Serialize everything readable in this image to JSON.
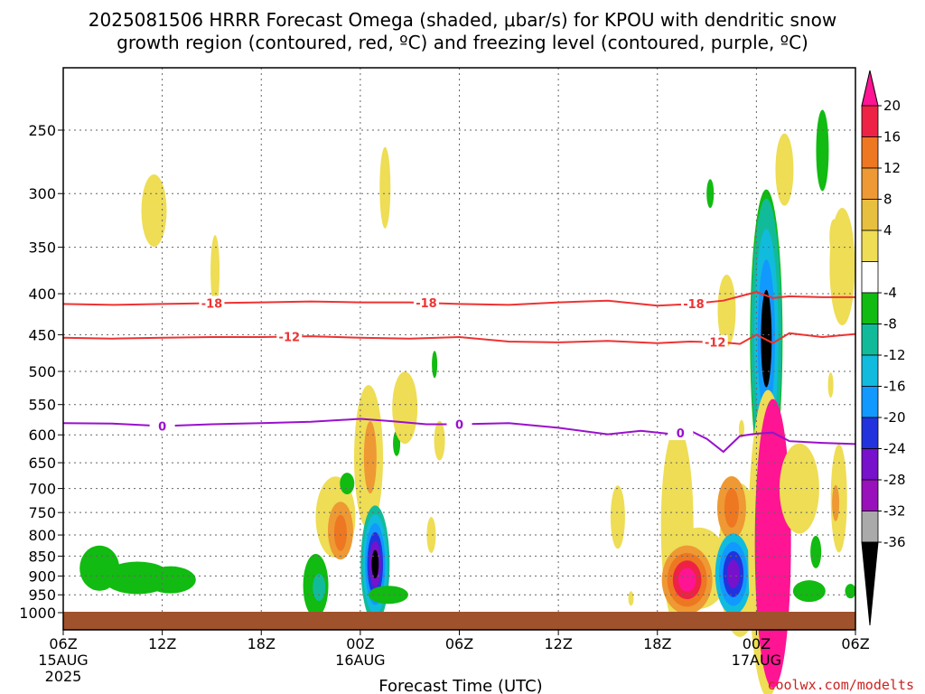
{
  "chart_data": {
    "type": "heatmap",
    "title": "2025081506 HRRR Forecast Omega (shaded, μbar/s) for KPOU with dendritic snow",
    "title_line2": "growth region (contoured, red, ºC) and freezing level (contoured, purple, ºC)",
    "xlabel": "Forecast Time (UTC)",
    "credit": "coolwx.com/modelts",
    "x_ticks": [
      {
        "hour": 0,
        "label": "06Z",
        "date": "15AUG",
        "year": "2025"
      },
      {
        "hour": 6,
        "label": "12Z"
      },
      {
        "hour": 12,
        "label": "18Z"
      },
      {
        "hour": 18,
        "label": "00Z",
        "date": "16AUG"
      },
      {
        "hour": 24,
        "label": "06Z"
      },
      {
        "hour": 30,
        "label": "12Z"
      },
      {
        "hour": 36,
        "label": "18Z"
      },
      {
        "hour": 42,
        "label": "00Z",
        "date": "17AUG"
      },
      {
        "hour": 48,
        "label": "06Z"
      }
    ],
    "xlim": [
      0,
      48
    ],
    "y_ticks": [
      250,
      300,
      350,
      400,
      450,
      500,
      550,
      600,
      650,
      700,
      750,
      800,
      850,
      900,
      950,
      1000
    ],
    "ylim": [
      1020,
      200
    ],
    "y_scale": "pressure (hPa), log-like",
    "grid": true,
    "colorbar": {
      "labels": [
        "20",
        "16",
        "12",
        "8",
        "4",
        "-4",
        "-8",
        "-12",
        "-16",
        "-20",
        "-24",
        "-28",
        "-32",
        "-36"
      ],
      "colors": [
        "#ff1493",
        "#ee2244",
        "#ee7722",
        "#ee9933",
        "#e8c040",
        "#eedd55",
        "#ffffff",
        "#11bb11",
        "#11bb99",
        "#11bbdd",
        "#1199ff",
        "#2233dd",
        "#7711cc",
        "#9911bb",
        "#aaaaaa",
        "#000000"
      ]
    },
    "contours": [
      {
        "value": "-18",
        "color": "#ee3333",
        "x": [
          0,
          3,
          6,
          9,
          12,
          15,
          18,
          21,
          24,
          27,
          30,
          33,
          36,
          38,
          40,
          41,
          42,
          43,
          44,
          46,
          48
        ],
        "p": [
          412,
          413,
          412,
          411,
          410,
          409,
          410,
          410,
          412,
          413,
          410,
          408,
          414,
          412,
          408,
          403,
          398,
          405,
          403,
          404,
          404
        ],
        "labels_at": [
          9,
          22,
          38.2
        ]
      },
      {
        "value": "-12",
        "color": "#ee3333",
        "x": [
          0,
          3,
          6,
          9,
          12,
          15,
          18,
          21,
          24,
          27,
          30,
          33,
          36,
          38,
          40,
          41,
          42,
          43,
          44,
          46,
          48
        ],
        "p": [
          454,
          455,
          454,
          453,
          453,
          452,
          454,
          455,
          453,
          459,
          460,
          458,
          461,
          459,
          460,
          462,
          450,
          461,
          448,
          453,
          449
        ],
        "labels_at": [
          13.7,
          39.5
        ]
      },
      {
        "value": "0",
        "color": "#9911cc",
        "x": [
          0,
          3,
          6,
          9,
          12,
          15,
          18,
          20,
          22,
          24,
          27,
          30,
          33,
          35,
          37,
          38,
          39,
          40,
          41,
          42,
          43,
          44,
          46,
          48
        ],
        "p": [
          580,
          581,
          585,
          582,
          580,
          578,
          573,
          577,
          582,
          582,
          580,
          588,
          599,
          593,
          599,
          593,
          607,
          630,
          602,
          598,
          596,
          611,
          614,
          616
        ],
        "labels_at": [
          6,
          24,
          37.4
        ]
      }
    ],
    "terrain_p": 1010
  }
}
